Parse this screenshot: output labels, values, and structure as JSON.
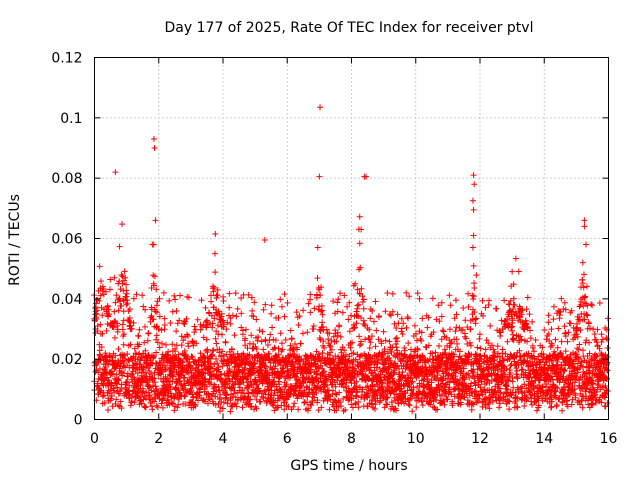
{
  "chart_data": {
    "type": "scatter",
    "title": "Day 177 of 2025, Rate Of TEC Index for receiver ptvl",
    "xlabel": "GPS time / hours",
    "ylabel": "ROTI / TECUs",
    "xlim": [
      0,
      16
    ],
    "ylim": [
      0,
      0.12
    ],
    "x_ticks": [
      0,
      2,
      4,
      6,
      8,
      10,
      12,
      14,
      16
    ],
    "x_tick_labels": [
      "0",
      "2",
      "4",
      "6",
      "8",
      "10",
      "12",
      "14",
      "16"
    ],
    "y_ticks": [
      0,
      0.02,
      0.04,
      0.06,
      0.08,
      0.1,
      0.12
    ],
    "y_tick_labels": [
      "0",
      "0.02",
      "0.04",
      "0.06",
      "0.08",
      "0.1",
      "0.12"
    ],
    "grid": true,
    "marker": "plus",
    "color": "#ff0000",
    "band": {
      "x_step": 0.025,
      "points_per_step": 7,
      "typical_min": 0.006,
      "typical_max": 0.03,
      "median": 0.013
    },
    "notable_points": [
      {
        "x": 0.65,
        "y": 0.082
      },
      {
        "x": 1.85,
        "y": 0.093
      },
      {
        "x": 1.87,
        "y": 0.09
      },
      {
        "x": 1.9,
        "y": 0.066
      },
      {
        "x": 1.8,
        "y": 0.058
      },
      {
        "x": 3.75,
        "y": 0.055
      },
      {
        "x": 5.3,
        "y": 0.0595
      },
      {
        "x": 6.95,
        "y": 0.057
      },
      {
        "x": 7.02,
        "y": 0.1035
      },
      {
        "x": 7.0,
        "y": 0.0805
      },
      {
        "x": 8.3,
        "y": 0.063
      },
      {
        "x": 8.4,
        "y": 0.0805
      },
      {
        "x": 8.45,
        "y": 0.0805
      },
      {
        "x": 11.8,
        "y": 0.081
      },
      {
        "x": 11.82,
        "y": 0.078
      },
      {
        "x": 11.78,
        "y": 0.0725
      },
      {
        "x": 11.8,
        "y": 0.0695
      },
      {
        "x": 11.8,
        "y": 0.061
      },
      {
        "x": 11.78,
        "y": 0.057
      },
      {
        "x": 13.0,
        "y": 0.049
      },
      {
        "x": 15.25,
        "y": 0.066
      },
      {
        "x": 15.25,
        "y": 0.064
      },
      {
        "x": 15.3,
        "y": 0.058
      },
      {
        "x": 15.2,
        "y": 0.052
      }
    ],
    "bursts": [
      {
        "x": 0.25,
        "width": 0.35,
        "peak": 0.05
      },
      {
        "x": 0.85,
        "width": 0.3,
        "peak": 0.058
      },
      {
        "x": 1.85,
        "width": 0.15,
        "peak": 0.058
      },
      {
        "x": 3.75,
        "width": 0.3,
        "peak": 0.05
      },
      {
        "x": 6.95,
        "width": 0.15,
        "peak": 0.054
      },
      {
        "x": 8.25,
        "width": 0.2,
        "peak": 0.059
      },
      {
        "x": 11.8,
        "width": 0.1,
        "peak": 0.055
      },
      {
        "x": 13.1,
        "width": 0.4,
        "peak": 0.045
      },
      {
        "x": 15.2,
        "width": 0.2,
        "peak": 0.05
      }
    ]
  }
}
